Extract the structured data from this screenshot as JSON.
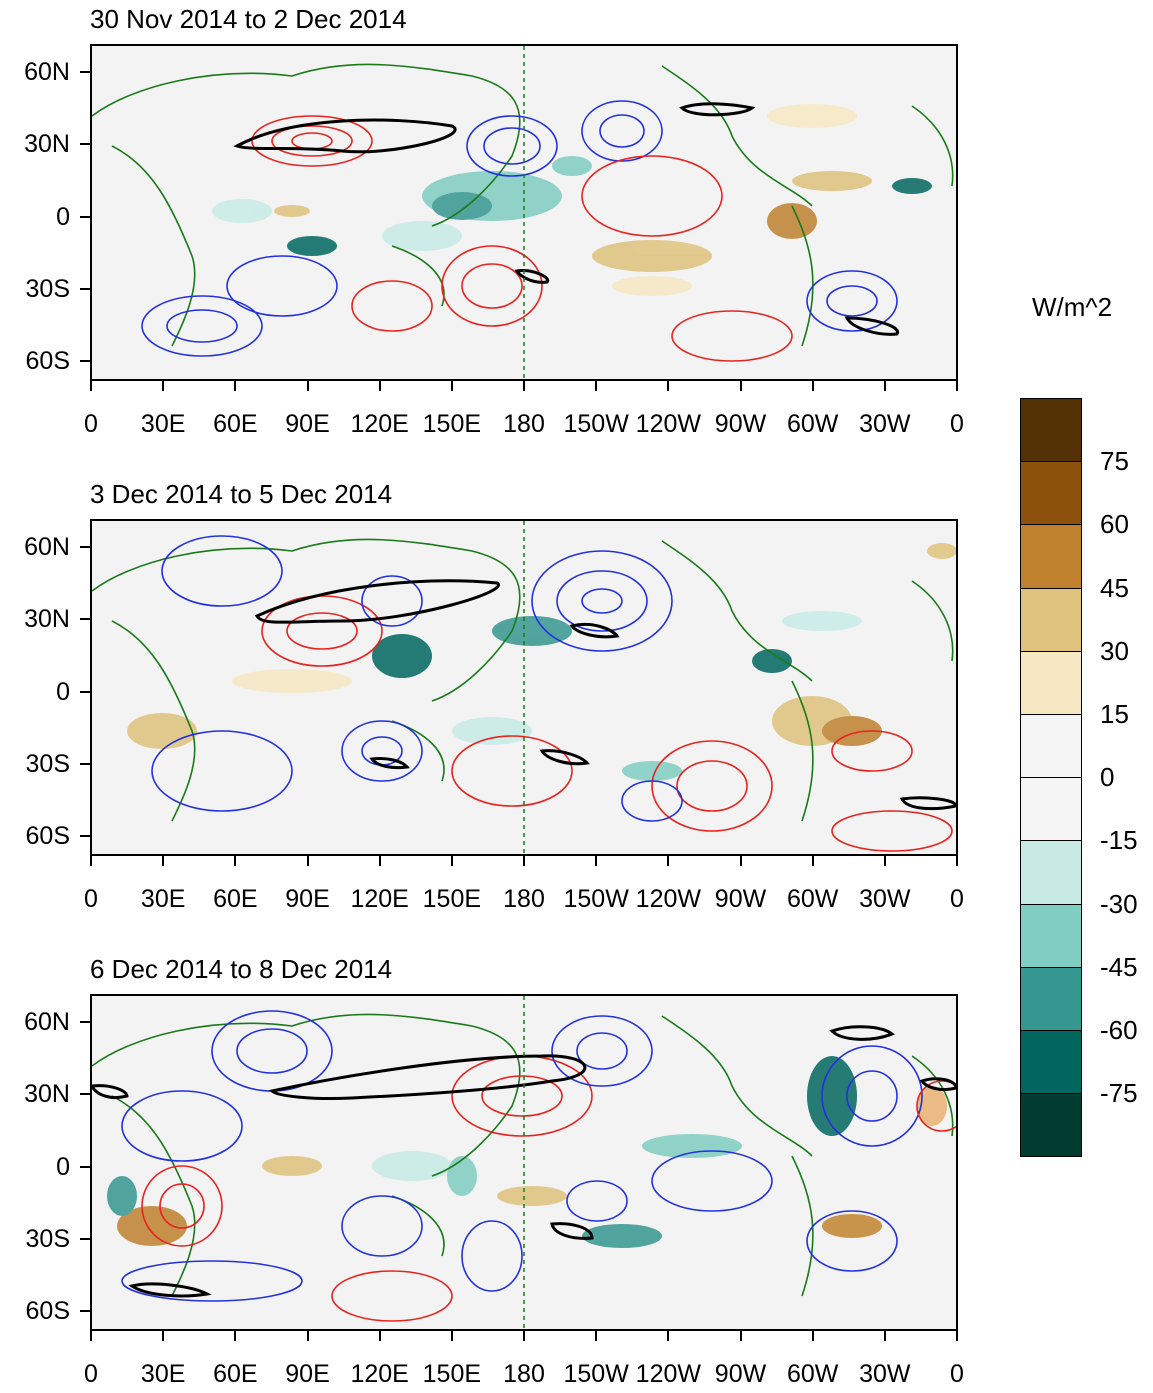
{
  "panels": [
    {
      "title": "30 Nov 2014 to 2 Dec 2014"
    },
    {
      "title": "3 Dec 2014 to 5 Dec 2014"
    },
    {
      "title": "6 Dec 2014 to 8 Dec 2014"
    }
  ],
  "lat_labels": [
    "60N",
    "30N",
    "0",
    "30S",
    "60S"
  ],
  "lon_labels": [
    "0",
    "30E",
    "60E",
    "90E",
    "120E",
    "150E",
    "180",
    "150W",
    "120W",
    "90W",
    "60W",
    "30W",
    "0"
  ],
  "colorbar": {
    "title": "W/m^2",
    "labels": [
      "75",
      "60",
      "45",
      "30",
      "15",
      "0",
      "-15",
      "-30",
      "-45",
      "-60",
      "-75"
    ],
    "colors": [
      "#543005",
      "#8c510a",
      "#bf812d",
      "#dfc27d",
      "#f6e8c3",
      "#f5f5f5",
      "#f5f5f5",
      "#c7eae5",
      "#80cdc1",
      "#35978f",
      "#01665e",
      "#003c30"
    ]
  },
  "colors": {
    "positive_contour": "#e8231f",
    "negative_contour": "#2230e0",
    "coastline": "#1a7a1a",
    "significance_contour": "#000000",
    "dateline": "#1a7a1a"
  }
}
